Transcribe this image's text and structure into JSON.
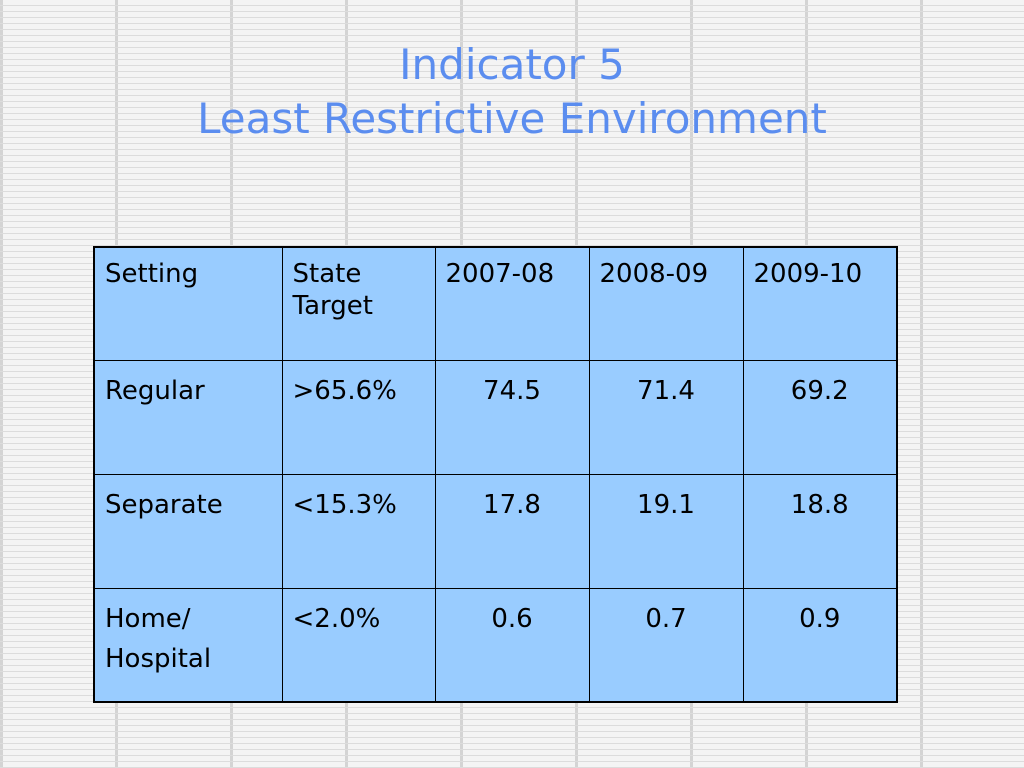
{
  "title": {
    "line1": "Indicator 5",
    "line2": "Least Restrictive Environment"
  },
  "table": {
    "headers": [
      "Setting",
      "State Target",
      "2007-08",
      "2008-09",
      "2009-10"
    ],
    "rows": [
      {
        "setting": "Regular",
        "target": ">65.6%",
        "values": [
          "74.5",
          "71.4",
          "69.2"
        ]
      },
      {
        "setting": "Separate",
        "target": "<15.3%",
        "values": [
          "17.8",
          "19.1",
          "18.8"
        ]
      },
      {
        "setting": "Home/ Hospital",
        "target": "<2.0%",
        "values": [
          "0.6",
          "0.7",
          "0.9"
        ]
      }
    ]
  },
  "colors": {
    "title": "#5b8def",
    "cell_background": "#99ccff",
    "border": "#000000"
  }
}
